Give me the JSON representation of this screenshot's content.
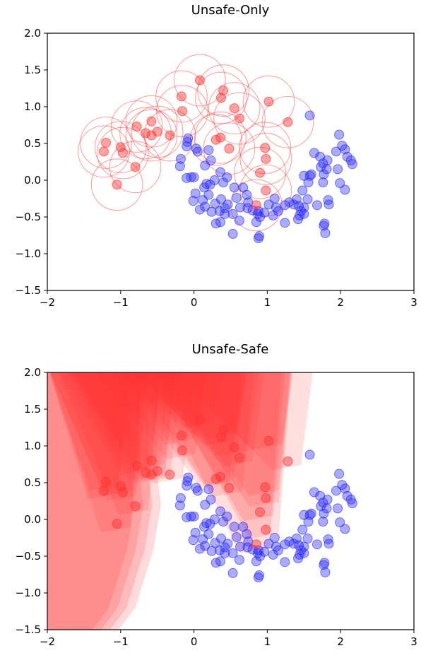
{
  "chart_data": [
    {
      "type": "scatter",
      "title": "Unsafe-Only",
      "xlim": [
        -2,
        3
      ],
      "ylim": [
        -1.5,
        2.0
      ],
      "xticks": [
        "−2",
        "−1",
        "0",
        "1",
        "2",
        "3"
      ],
      "yticks": [
        "−1.5",
        "−1.0",
        "−0.5",
        "0.0",
        "0.5",
        "1.0",
        "1.5",
        "2.0"
      ],
      "grid": false,
      "colors": {
        "unsafe": "#ff3030",
        "safe": "#2424ff"
      },
      "unsafe_region": {
        "shape": "circles",
        "radius": 0.35
      },
      "unsafe_points": [
        [
          -1.2,
          0.51
        ],
        [
          -1.23,
          0.39
        ],
        [
          -1.0,
          0.45
        ],
        [
          -0.97,
          0.37
        ],
        [
          -1.05,
          -0.06
        ],
        [
          -0.78,
          0.73
        ],
        [
          -0.8,
          0.18
        ],
        [
          -0.66,
          0.64
        ],
        [
          -0.58,
          0.8
        ],
        [
          -0.58,
          0.61
        ],
        [
          -0.5,
          0.66
        ],
        [
          -0.33,
          0.61
        ],
        [
          -0.17,
          1.14
        ],
        [
          -0.16,
          0.94
        ],
        [
          0.08,
          1.36
        ],
        [
          0.37,
          1.12
        ],
        [
          0.4,
          1.22
        ],
        [
          0.3,
          0.55
        ],
        [
          0.36,
          0.58
        ],
        [
          0.55,
          0.98
        ],
        [
          0.62,
          0.84
        ],
        [
          0.48,
          0.43
        ],
        [
          1.02,
          1.07
        ],
        [
          1.28,
          0.79
        ],
        [
          0.9,
          0.1
        ],
        [
          0.97,
          0.44
        ],
        [
          0.98,
          0.29
        ],
        [
          0.98,
          -0.14
        ],
        [
          0.85,
          -0.34
        ]
      ],
      "safe_points": [
        [
          -0.08,
          0.57
        ],
        [
          -0.09,
          0.52
        ],
        [
          -0.1,
          0.46
        ],
        [
          0.03,
          0.43
        ],
        [
          0.05,
          0.39
        ],
        [
          -0.18,
          0.29
        ],
        [
          -0.19,
          0.19
        ],
        [
          0.2,
          0.41
        ],
        [
          0.23,
          0.27
        ],
        [
          0.15,
          0.2
        ],
        [
          -0.04,
          0.04
        ],
        [
          0.0,
          0.04
        ],
        [
          -0.1,
          0.03
        ],
        [
          0.17,
          -0.05
        ],
        [
          0.14,
          -0.1
        ],
        [
          0.22,
          -0.06
        ],
        [
          0.28,
          0.0
        ],
        [
          0.2,
          -0.2
        ],
        [
          0.4,
          -0.03
        ],
        [
          0.55,
          -0.1
        ],
        [
          0.02,
          -0.18
        ],
        [
          -0.01,
          -0.28
        ],
        [
          0.12,
          -0.27
        ],
        [
          0.15,
          -0.36
        ],
        [
          0.08,
          -0.4
        ],
        [
          0.24,
          -0.43
        ],
        [
          0.37,
          -0.26
        ],
        [
          0.46,
          -0.33
        ],
        [
          0.42,
          -0.38
        ],
        [
          0.35,
          -0.42
        ],
        [
          0.42,
          -0.46
        ],
        [
          0.58,
          -0.24
        ],
        [
          0.74,
          -0.3
        ],
        [
          0.73,
          -0.38
        ],
        [
          0.63,
          -0.37
        ],
        [
          0.36,
          -0.57
        ],
        [
          0.3,
          -0.59
        ],
        [
          0.53,
          -0.46
        ],
        [
          0.62,
          -0.55
        ],
        [
          0.8,
          -0.41
        ],
        [
          0.88,
          -0.42
        ],
        [
          0.87,
          -0.46
        ],
        [
          0.9,
          -0.5
        ],
        [
          0.96,
          -0.44
        ],
        [
          1.02,
          -0.33
        ],
        [
          1.12,
          -0.37
        ],
        [
          1.24,
          -0.34
        ],
        [
          1.15,
          -0.42
        ],
        [
          1.08,
          -0.48
        ],
        [
          1.3,
          -0.3
        ],
        [
          1.36,
          -0.33
        ],
        [
          1.43,
          -0.35
        ],
        [
          1.46,
          -0.42
        ],
        [
          1.5,
          -0.46
        ],
        [
          1.5,
          -0.37
        ],
        [
          1.24,
          -0.58
        ],
        [
          0.85,
          -0.57
        ],
        [
          0.89,
          -0.76
        ],
        [
          0.88,
          -0.79
        ],
        [
          0.53,
          -0.73
        ],
        [
          1.42,
          -0.53
        ],
        [
          1.44,
          -0.48
        ],
        [
          1.56,
          -0.03
        ],
        [
          1.58,
          0.06
        ],
        [
          1.5,
          0.06
        ],
        [
          1.6,
          0.08
        ],
        [
          1.48,
          -0.14
        ],
        [
          1.64,
          0.37
        ],
        [
          1.72,
          0.32
        ],
        [
          1.73,
          0.18
        ],
        [
          1.76,
          0.23
        ],
        [
          1.77,
          0.08
        ],
        [
          1.81,
          0.15
        ],
        [
          1.82,
          0.27
        ],
        [
          1.94,
          0.39
        ],
        [
          1.98,
          0.62
        ],
        [
          2.02,
          0.47
        ],
        [
          2.06,
          0.42
        ],
        [
          2.09,
          0.32
        ],
        [
          2.14,
          0.27
        ],
        [
          2.16,
          0.22
        ],
        [
          1.96,
          0.15
        ],
        [
          1.99,
          -0.04
        ],
        [
          2.06,
          -0.13
        ],
        [
          1.58,
          0.88
        ],
        [
          1.76,
          -0.03
        ],
        [
          1.83,
          -0.27
        ],
        [
          1.84,
          -0.33
        ],
        [
          1.68,
          -0.34
        ],
        [
          1.78,
          -0.59
        ],
        [
          1.77,
          -0.62
        ],
        [
          1.79,
          -0.72
        ],
        [
          1.1,
          -0.25
        ],
        [
          1.4,
          -0.26
        ],
        [
          1.55,
          -0.26
        ],
        [
          0.67,
          -0.1
        ],
        [
          0.72,
          -0.2
        ],
        [
          0.36,
          0.11
        ],
        [
          0.45,
          0.04
        ],
        [
          0.29,
          -0.32
        ]
      ]
    },
    {
      "type": "scatter",
      "title": "Unsafe-Safe",
      "xlim": [
        -2,
        3
      ],
      "ylim": [
        -1.5,
        2.0
      ],
      "xticks": [
        "−2",
        "−1",
        "0",
        "1",
        "2",
        "3"
      ],
      "yticks": [
        "−1.5",
        "−1.0",
        "−0.5",
        "0.0",
        "0.5",
        "1.0",
        "1.5",
        "2.0"
      ],
      "grid": false,
      "colors": {
        "unsafe": "#ff3030",
        "safe": "#2424ff"
      },
      "unsafe_region": {
        "shape": "overlapping-polygons"
      },
      "same_points_as_first": true
    }
  ]
}
